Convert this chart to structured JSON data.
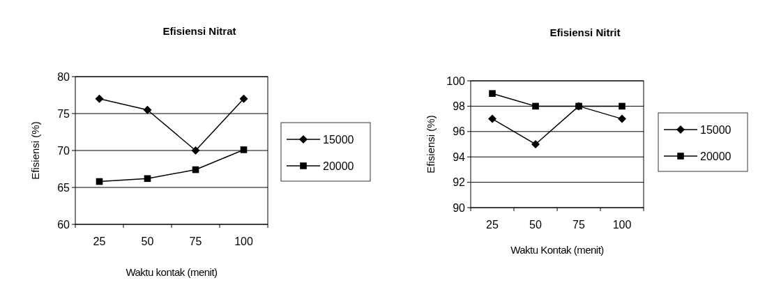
{
  "chart_data": [
    {
      "type": "line",
      "title": "Efisiensi Nitrat",
      "xlabel": "Waktu kontak (menit)",
      "ylabel": "Efisiensi (%)",
      "categories": [
        "25",
        "50",
        "75",
        "100"
      ],
      "ylim": [
        60,
        80
      ],
      "yticks": [
        60,
        65,
        70,
        75,
        80
      ],
      "grid": "y",
      "legend": "right",
      "series": [
        {
          "name": "15000",
          "color": "#000000",
          "marker": "diamond",
          "values": [
            77,
            75.5,
            70,
            77
          ]
        },
        {
          "name": "20000",
          "color": "#000000",
          "marker": "square",
          "values": [
            65.8,
            66.2,
            67.4,
            70.1
          ]
        }
      ]
    },
    {
      "type": "line",
      "title": "Efisiensi Nitrit",
      "xlabel": "Waktu Kontak (menit)",
      "ylabel": "Efisiensi (%)",
      "categories": [
        "25",
        "50",
        "75",
        "100"
      ],
      "ylim": [
        90,
        100
      ],
      "yticks": [
        90,
        92,
        94,
        96,
        98,
        100
      ],
      "grid": "y",
      "legend": "right",
      "series": [
        {
          "name": "15000",
          "color": "#000000",
          "marker": "diamond",
          "values": [
            97,
            95,
            98,
            97
          ]
        },
        {
          "name": "20000",
          "color": "#000000",
          "marker": "square",
          "values": [
            99,
            98,
            98,
            98
          ]
        }
      ]
    }
  ]
}
